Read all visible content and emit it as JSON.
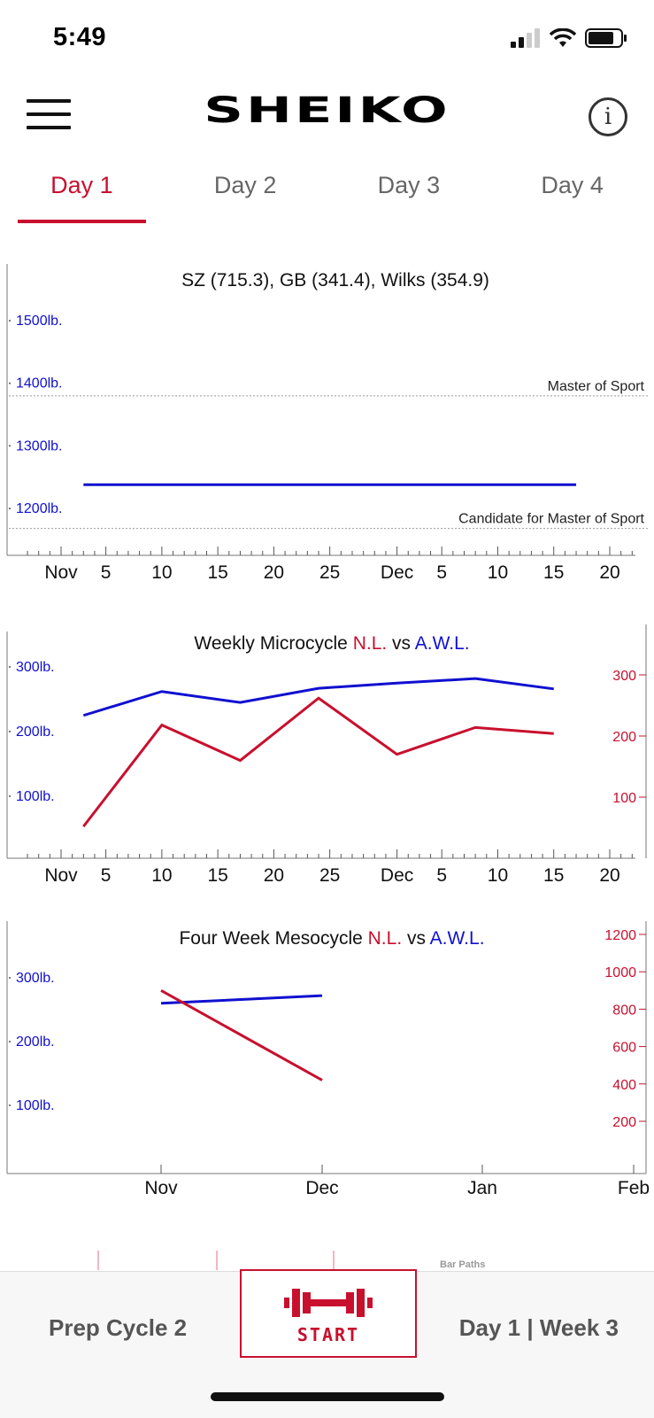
{
  "status_bar": {
    "time": "5:49"
  },
  "header": {
    "logo": "SHEIKO",
    "menu_icon": "hamburger-menu-icon",
    "info_icon": "info-icon",
    "info_glyph": "i"
  },
  "tabs": [
    {
      "label": "Day 1",
      "active": true
    },
    {
      "label": "Day 2",
      "active": false
    },
    {
      "label": "Day 3",
      "active": false
    },
    {
      "label": "Day 4",
      "active": false
    }
  ],
  "colors": {
    "accent": "#c8102e",
    "awl_blue": "#1010d0",
    "nl_red": "#c8102e"
  },
  "chart_data": [
    {
      "type": "line",
      "title": "SZ (715.3), GB (341.4), Wilks (354.9)",
      "y_ticks": [
        "1500lb.",
        "1400lb.",
        "1300lb.",
        "1200lb."
      ],
      "y_values": [
        1500,
        1400,
        1300,
        1200
      ],
      "ylim": [
        1135,
        1510
      ],
      "x_ticks": [
        "Nov",
        "5",
        "10",
        "15",
        "20",
        "25",
        "Dec",
        "5",
        "10",
        "15",
        "20"
      ],
      "reference_lines": [
        {
          "label": "Master of Sport",
          "value": 1380
        },
        {
          "label": "Candidate for Master of Sport",
          "value": 1168
        }
      ],
      "series": [
        {
          "color": "#1010d0",
          "x": [
            "Nov 3",
            "Dec 17"
          ],
          "values": [
            1238,
            1238
          ]
        }
      ]
    },
    {
      "type": "line",
      "title_parts": [
        "Weekly Microcycle ",
        "N.L.",
        " vs ",
        "A.W.L."
      ],
      "y_left_ticks": [
        "300lb.",
        "200lb.",
        "100lb."
      ],
      "y_left_values": [
        300,
        200,
        100
      ],
      "y_right_ticks": [
        "300",
        "200",
        "100"
      ],
      "y_right_values": [
        300,
        200,
        100
      ],
      "x_ticks": [
        "Nov",
        "5",
        "10",
        "15",
        "20",
        "25",
        "Dec",
        "5",
        "10",
        "15",
        "20"
      ],
      "series": [
        {
          "name": "A.W.L.",
          "color": "#1010d0",
          "x": [
            "Nov 3",
            "Nov 10",
            "Nov 17",
            "Nov 24",
            "Dec 1",
            "Dec 8",
            "Dec 15"
          ],
          "values": [
            225,
            262,
            245,
            267,
            275,
            282,
            266
          ]
        },
        {
          "name": "N.L.",
          "color": "#c8102e",
          "x": [
            "Nov 3",
            "Nov 10",
            "Nov 17",
            "Nov 24",
            "Dec 1",
            "Dec 8",
            "Dec 15"
          ],
          "values": [
            52,
            218,
            160,
            262,
            170,
            214,
            204
          ]
        }
      ]
    },
    {
      "type": "line",
      "title_parts": [
        "Four Week Mesocycle ",
        "N.L.",
        " vs ",
        "A.W.L."
      ],
      "y_left_ticks": [
        "300lb.",
        "200lb.",
        "100lb."
      ],
      "y_left_values": [
        300,
        200,
        100
      ],
      "y_right_ticks": [
        "1200",
        "1000",
        "800",
        "600",
        "400",
        "200"
      ],
      "y_right_values": [
        1200,
        1000,
        800,
        600,
        400,
        200
      ],
      "x_ticks": [
        "Nov",
        "Dec",
        "Jan",
        "Feb"
      ],
      "series": [
        {
          "name": "A.W.L.",
          "color": "#1010d0",
          "x": [
            "Nov",
            "Dec"
          ],
          "values": [
            260,
            272
          ]
        },
        {
          "name": "N.L.",
          "color": "#c8102e",
          "x": [
            "Nov",
            "Dec"
          ],
          "values": [
            900,
            420
          ]
        }
      ]
    }
  ],
  "bottom_bar": {
    "left_label": "Prep Cycle 2",
    "start_label": "START",
    "start_icon": "barbell-icon",
    "right_label": "Day 1 | Week 3",
    "peek_label": "Bar Paths"
  }
}
